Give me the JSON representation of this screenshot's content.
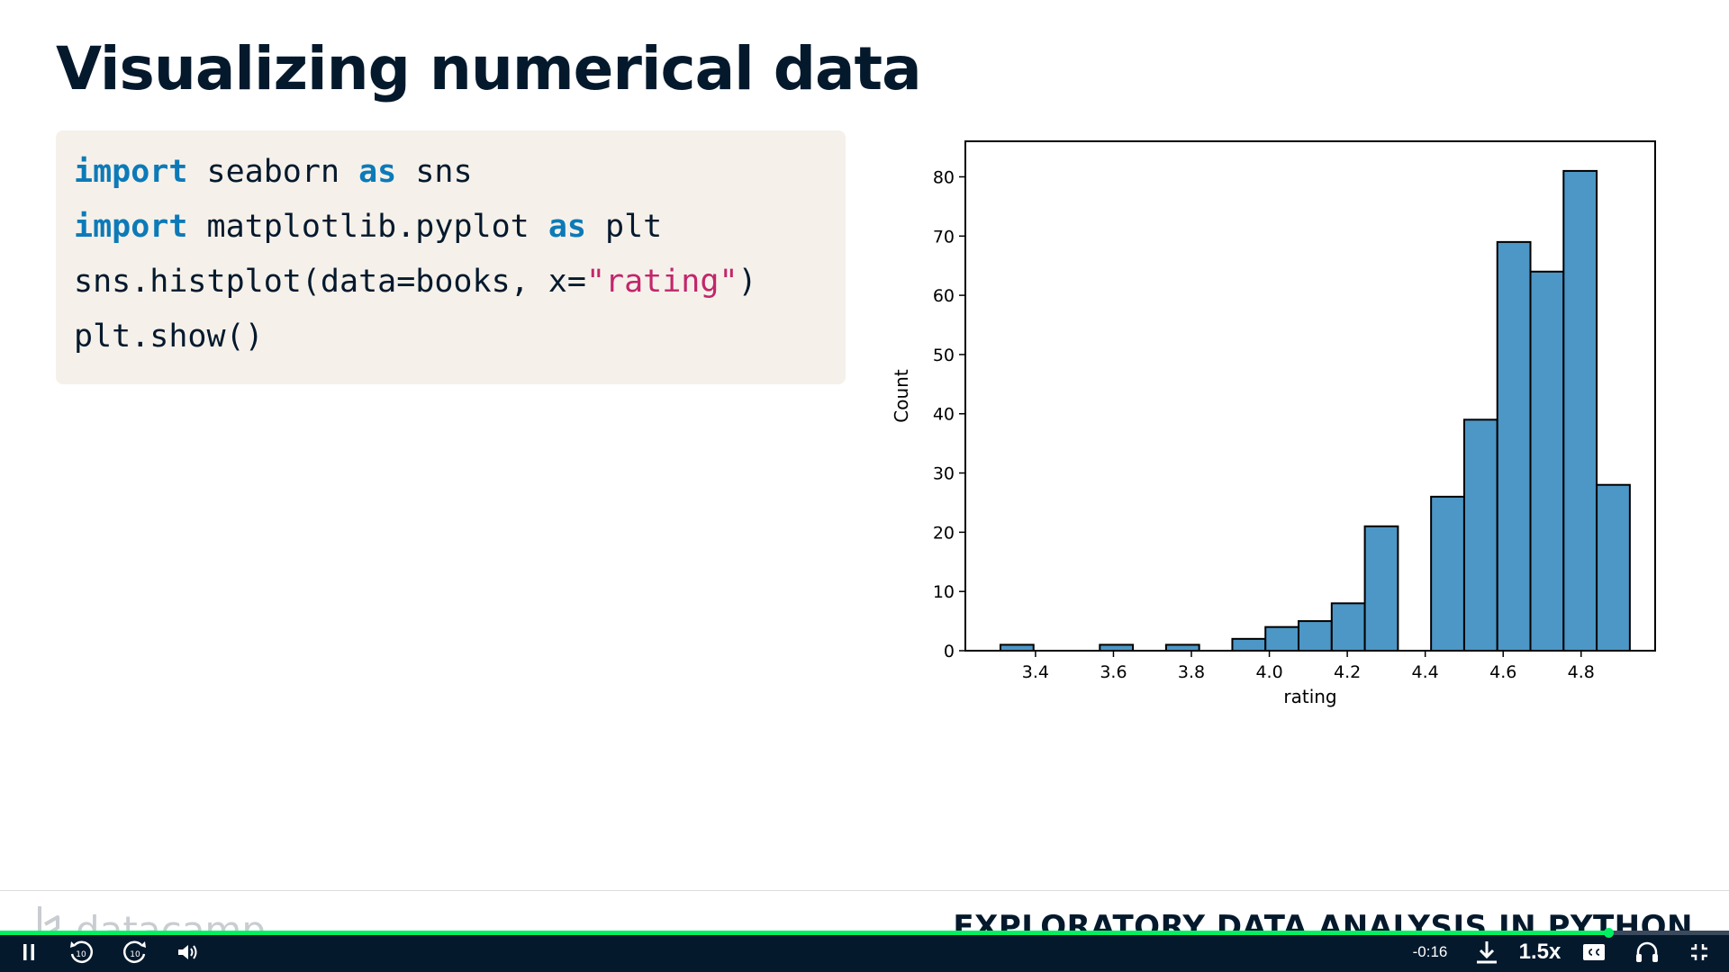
{
  "slide": {
    "title": "Visualizing numerical data",
    "code_lines": [
      [
        {
          "t": "import",
          "c": "kw"
        },
        {
          "t": " seaborn ",
          "c": ""
        },
        {
          "t": "as",
          "c": "kw"
        },
        {
          "t": " sns",
          "c": ""
        }
      ],
      [
        {
          "t": "import",
          "c": "kw"
        },
        {
          "t": " matplotlib.pyplot ",
          "c": ""
        },
        {
          "t": "as",
          "c": "kw"
        },
        {
          "t": " plt",
          "c": ""
        }
      ],
      [
        {
          "t": "sns.histplot(data=books, x=",
          "c": ""
        },
        {
          "t": "\"rating\"",
          "c": "str"
        },
        {
          "t": ")",
          "c": ""
        }
      ],
      [
        {
          "t": "plt.show()",
          "c": ""
        }
      ]
    ]
  },
  "chart_data": {
    "type": "bar",
    "subtype": "histogram",
    "xlabel": "rating",
    "ylabel": "Count",
    "bin_width": 0.085,
    "bins": [
      {
        "start": 3.31,
        "end": 3.395,
        "count": 1
      },
      {
        "start": 3.395,
        "end": 3.48,
        "count": 0
      },
      {
        "start": 3.48,
        "end": 3.565,
        "count": 0
      },
      {
        "start": 3.565,
        "end": 3.65,
        "count": 1
      },
      {
        "start": 3.65,
        "end": 3.735,
        "count": 0
      },
      {
        "start": 3.735,
        "end": 3.82,
        "count": 1
      },
      {
        "start": 3.82,
        "end": 3.905,
        "count": 0
      },
      {
        "start": 3.905,
        "end": 3.99,
        "count": 2
      },
      {
        "start": 3.99,
        "end": 4.075,
        "count": 4
      },
      {
        "start": 4.075,
        "end": 4.16,
        "count": 5
      },
      {
        "start": 4.16,
        "end": 4.245,
        "count": 8
      },
      {
        "start": 4.245,
        "end": 4.33,
        "count": 21
      },
      {
        "start": 4.33,
        "end": 4.415,
        "count": 0
      },
      {
        "start": 4.415,
        "end": 4.5,
        "count": 26
      },
      {
        "start": 4.5,
        "end": 4.585,
        "count": 39
      },
      {
        "start": 4.585,
        "end": 4.67,
        "count": 69
      },
      {
        "start": 4.67,
        "end": 4.755,
        "count": 64
      },
      {
        "start": 4.755,
        "end": 4.84,
        "count": 81
      },
      {
        "start": 4.84,
        "end": 4.925,
        "count": 28
      }
    ],
    "xlim": [
      3.22,
      4.99
    ],
    "ylim": [
      0,
      86
    ],
    "x_ticks": [
      "3.4",
      "3.6",
      "3.8",
      "4.0",
      "4.2",
      "4.4",
      "4.6",
      "4.8"
    ],
    "y_ticks": [
      "0",
      "10",
      "20",
      "30",
      "40",
      "50",
      "60",
      "70",
      "80"
    ],
    "bar_color": "#4c97c6",
    "edge_color": "#000000",
    "grid": false
  },
  "footer": {
    "logo_text": "datacamp",
    "course_title": "EXPLORATORY DATA ANALYSIS IN PYTHON"
  },
  "player": {
    "time_remaining": "-0:16",
    "speed": "1.5x",
    "progress_fraction": 0.93,
    "accent_color": "#03ef62",
    "icons": [
      "pause-icon",
      "rewind-10-icon",
      "forward-10-icon",
      "volume-icon",
      "download-icon",
      "captions-icon",
      "headphones-icon",
      "exit-fullscreen-icon"
    ]
  }
}
